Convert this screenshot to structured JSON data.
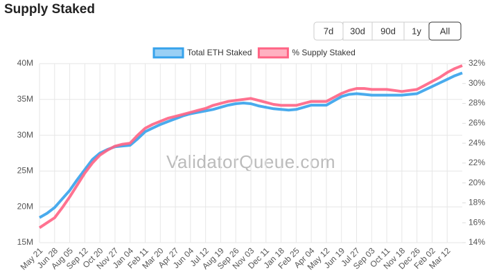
{
  "chart_data": {
    "type": "line",
    "title": "Supply Staked",
    "range_buttons": [
      "7d",
      "30d",
      "90d",
      "1y",
      "All"
    ],
    "selected_range": "All",
    "watermark": "ValidatorQueue.com",
    "categories": [
      "May 21",
      null,
      "Jun 28",
      null,
      "Aug 05",
      null,
      "Sep 12",
      null,
      "Oct 20",
      null,
      "Nov 27",
      null,
      "Jan 04",
      null,
      "Feb 11",
      null,
      "Mar 20",
      null,
      "Apr 27",
      null,
      "Jun 04",
      null,
      "Jul 12",
      null,
      "Aug 19",
      null,
      "Sep 26",
      null,
      "Nov 03",
      null,
      "Dec 11",
      null,
      "Jan 18",
      null,
      "Feb 25",
      null,
      "Apr 04",
      null,
      "May 12",
      null,
      "Jun 19",
      null,
      "Jul 27",
      null,
      "Sep 03",
      null,
      "Oct 11",
      null,
      "Nov 18",
      null,
      "Dec 26",
      null,
      "Feb 02",
      null,
      "Mar 12",
      null,
      null
    ],
    "series": [
      {
        "name": "Total ETH Staked",
        "color": "#36a2eb",
        "axis": "y",
        "values": [
          18.5,
          19.1,
          19.9,
          21.1,
          22.3,
          23.8,
          25.2,
          26.6,
          27.5,
          28.0,
          28.4,
          28.5,
          28.6,
          29.5,
          30.5,
          31.0,
          31.5,
          31.9,
          32.3,
          32.7,
          33.0,
          33.2,
          33.4,
          33.6,
          33.9,
          34.2,
          34.4,
          34.5,
          34.4,
          34.1,
          33.9,
          33.7,
          33.6,
          33.5,
          33.6,
          33.9,
          34.2,
          34.2,
          34.2,
          34.8,
          35.4,
          35.7,
          35.8,
          35.7,
          35.6,
          35.6,
          35.6,
          35.6,
          35.6,
          35.7,
          35.8,
          36.3,
          36.8,
          37.3,
          37.8,
          38.3,
          38.7
        ]
      },
      {
        "name": "% Supply Staked",
        "color": "#ff6384",
        "axis": "y2",
        "values": [
          15.5,
          16.0,
          16.5,
          17.5,
          18.6,
          19.8,
          21.0,
          22.0,
          22.8,
          23.3,
          23.7,
          23.9,
          24.0,
          24.8,
          25.5,
          25.9,
          26.2,
          26.5,
          26.7,
          26.9,
          27.1,
          27.3,
          27.5,
          27.8,
          28.0,
          28.2,
          28.3,
          28.4,
          28.5,
          28.3,
          28.1,
          27.9,
          27.8,
          27.8,
          27.8,
          28.0,
          28.2,
          28.2,
          28.2,
          28.6,
          29.0,
          29.3,
          29.5,
          29.5,
          29.4,
          29.4,
          29.4,
          29.3,
          29.2,
          29.3,
          29.4,
          29.8,
          30.2,
          30.6,
          31.1,
          31.5,
          31.8
        ]
      }
    ],
    "ylim": [
      15,
      40
    ],
    "yticks": [
      {
        "value": 15,
        "label": "15M"
      },
      {
        "value": 20,
        "label": "20M"
      },
      {
        "value": 25,
        "label": "25M"
      },
      {
        "value": 30,
        "label": "30M"
      },
      {
        "value": 35,
        "label": "35M"
      },
      {
        "value": 40,
        "label": "40M"
      }
    ],
    "y2lim": [
      14,
      32
    ],
    "y2ticks": [
      {
        "value": 14,
        "label": "14%"
      },
      {
        "value": 16,
        "label": "16%"
      },
      {
        "value": 18,
        "label": "18%"
      },
      {
        "value": 20,
        "label": "20%"
      },
      {
        "value": 22,
        "label": "22%"
      },
      {
        "value": 24,
        "label": "24%"
      },
      {
        "value": 26,
        "label": "26%"
      },
      {
        "value": 28,
        "label": "28%"
      },
      {
        "value": 30,
        "label": "30%"
      },
      {
        "value": 32,
        "label": "32%"
      }
    ],
    "grid": true,
    "legend": "top"
  }
}
